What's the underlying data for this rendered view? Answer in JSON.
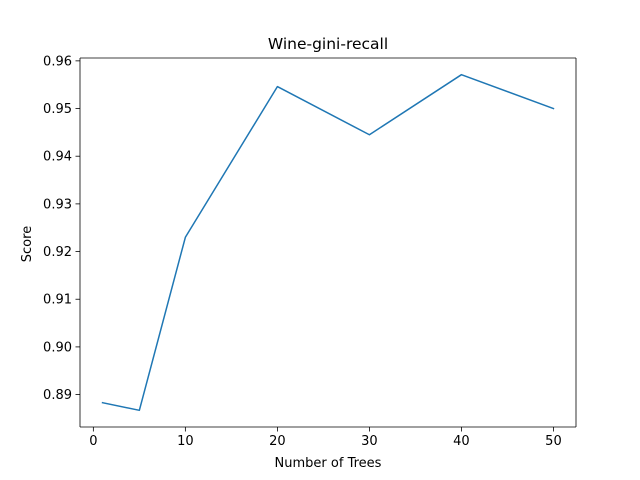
{
  "chart_data": {
    "type": "line",
    "title": "Wine-gini-recall",
    "xlabel": "Number of Trees",
    "ylabel": "Score",
    "x": [
      1,
      5,
      10,
      20,
      30,
      40,
      50
    ],
    "series": [
      {
        "values": [
          0.8883,
          0.8867,
          0.923,
          0.9546,
          0.9445,
          0.9571,
          0.95
        ],
        "color": "#1f77b4"
      }
    ],
    "xlim": [
      -1.45,
      52.45
    ],
    "ylim": [
      0.8832,
      0.9606
    ],
    "xticks": [
      0,
      10,
      20,
      30,
      40,
      50
    ],
    "xtick_labels": [
      "0",
      "10",
      "20",
      "30",
      "40",
      "50"
    ],
    "yticks": [
      0.89,
      0.9,
      0.91,
      0.92,
      0.93,
      0.94,
      0.95,
      0.96
    ],
    "ytick_labels": [
      "0.89",
      "0.90",
      "0.91",
      "0.92",
      "0.93",
      "0.94",
      "0.95",
      "0.96"
    ],
    "grid": false,
    "legend": "none"
  }
}
